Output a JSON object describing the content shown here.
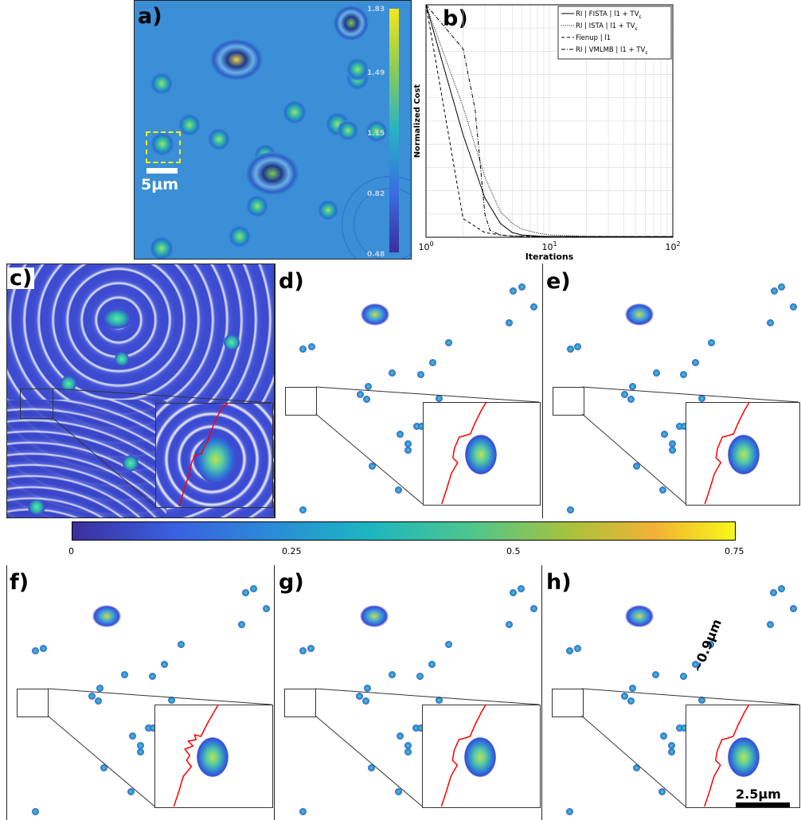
{
  "panels": {
    "a": "a)",
    "b": "b)",
    "c": "c)",
    "d": "d)",
    "e": "e)",
    "f": "f)",
    "g": "g)",
    "h": "h)"
  },
  "panel_a": {
    "scalebar_label": "5µm",
    "colorbar_ticks": [
      "1.83",
      "1.49",
      "1.15",
      "0.82",
      "0.48"
    ]
  },
  "main_colorbar": {
    "ticks": [
      "0",
      "0.25",
      "0.5",
      "0.75"
    ]
  },
  "panel_h": {
    "distance_label": "~0.9µm",
    "scalebar_label": "2.5µm"
  },
  "colors": {
    "hologram_bg": "#3a8fd6",
    "bead": "#2fb8b0",
    "profile": "#ff0000",
    "yellow_box": "#f2f20a"
  },
  "chart_data": {
    "type": "line",
    "xlabel": "Iterations",
    "ylabel": "Normalized Cost",
    "x_scale": "log",
    "xlim": [
      1,
      100
    ],
    "ylim": [
      0,
      1
    ],
    "grid": true,
    "legend_position": "top-right",
    "x_ticks": [
      "10^0",
      "10^1",
      "10^2"
    ],
    "series": [
      {
        "name": "RI | FISTA | l1 + TV",
        "name_sub": "ε",
        "style": "solid",
        "x": [
          1,
          2,
          3,
          4,
          5,
          6,
          8,
          10,
          20,
          50,
          100
        ],
        "y": [
          1.0,
          0.44,
          0.17,
          0.06,
          0.02,
          0.01,
          0.005,
          0.003,
          0.002,
          0.002,
          0.002
        ]
      },
      {
        "name": "RI | ISTA | l1 + TV",
        "name_sub": "ε",
        "style": "dotted",
        "x": [
          1,
          2,
          3,
          4,
          5,
          6,
          8,
          10,
          20,
          50,
          100
        ],
        "y": [
          1.0,
          0.56,
          0.26,
          0.11,
          0.06,
          0.035,
          0.018,
          0.01,
          0.004,
          0.003,
          0.003
        ]
      },
      {
        "name": "Fienup | l1",
        "name_sub": "",
        "style": "dashed",
        "x": [
          1,
          2,
          3,
          4,
          5,
          10,
          100
        ],
        "y": [
          1.0,
          0.08,
          0.02,
          0.01,
          0.005,
          0.003,
          0.002
        ]
      },
      {
        "name": "RI | VMLMB | l1 + TV",
        "name_sub": "ε",
        "style": "dashdot",
        "x": [
          1,
          2,
          2.5,
          3,
          3.3,
          4,
          5,
          10,
          100
        ],
        "y": [
          1.0,
          0.81,
          0.55,
          0.1,
          0.03,
          0.01,
          0.005,
          0.003,
          0.003
        ]
      }
    ]
  }
}
